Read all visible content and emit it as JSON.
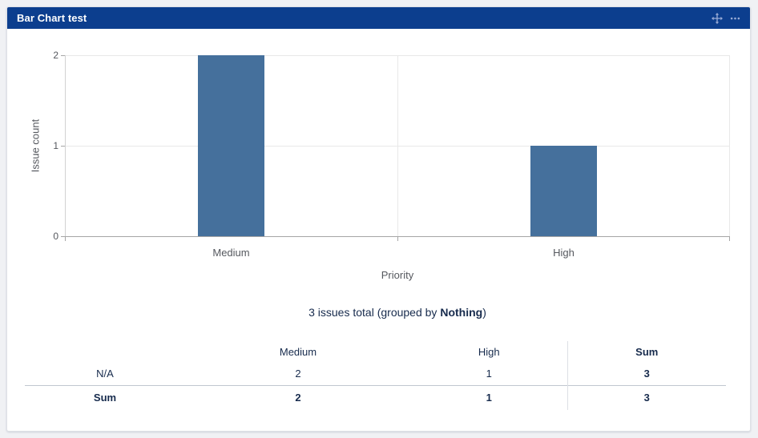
{
  "gadget": {
    "title": "Bar Chart test",
    "icons": {
      "move": "move-icon",
      "more": "more-options-icon"
    }
  },
  "chart_data": {
    "type": "bar",
    "categories": [
      "Medium",
      "High"
    ],
    "values": [
      2,
      1
    ],
    "bar_color": "#45709C",
    "title": "",
    "xlabel": "Priority",
    "ylabel": "Issue count",
    "ylim": [
      0,
      2
    ],
    "yticks": [
      "0",
      "1",
      "2"
    ],
    "grid": true,
    "legend_position": "none"
  },
  "summary": {
    "text_prefix": "3 issues total (grouped by ",
    "group_by": "Nothing",
    "text_suffix": ")"
  },
  "table": {
    "headers": [
      "",
      "Medium",
      "High",
      "Sum"
    ],
    "rows": [
      {
        "label": "N/A",
        "medium": "2",
        "high": "1",
        "sum": "3"
      },
      {
        "label": "Sum",
        "medium": "2",
        "high": "1",
        "sum": "3"
      }
    ]
  },
  "colors": {
    "header_bg": "#0C3E8E",
    "bar": "#45709C",
    "body_text": "#172B4D",
    "axis_text": "#55585E",
    "page_bg": "#F0F1F4"
  }
}
